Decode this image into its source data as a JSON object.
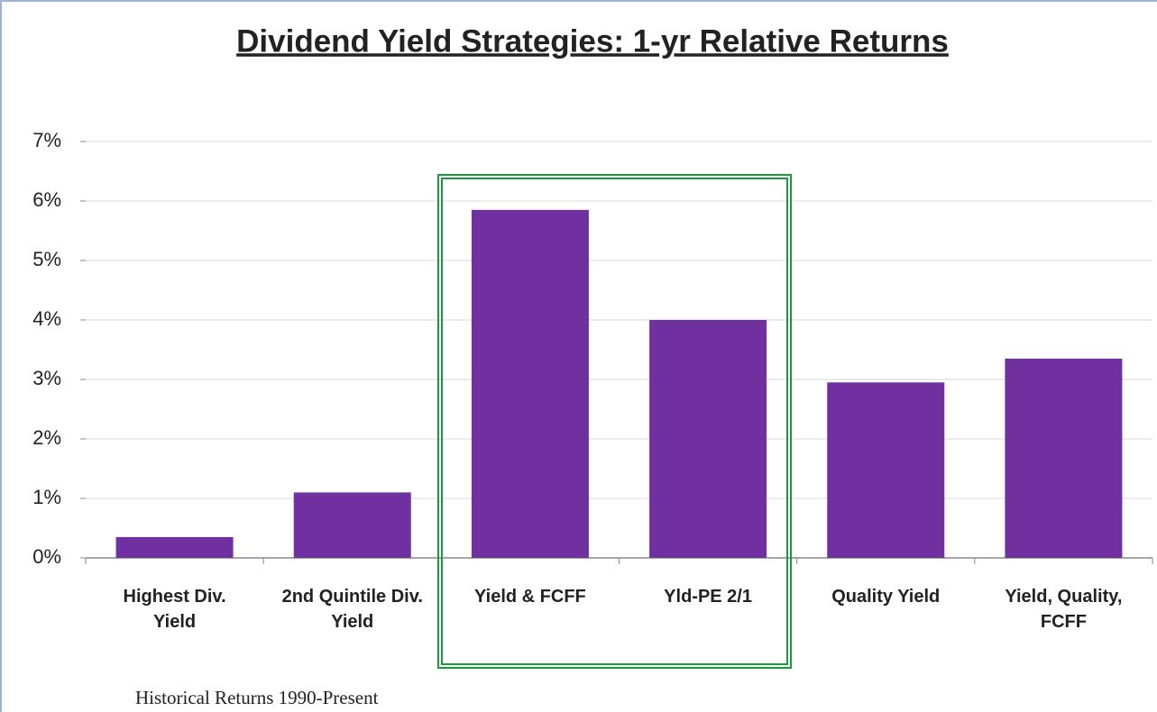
{
  "chart_data": {
    "type": "bar",
    "title": "Dividend Yield Strategies: 1-yr Relative Returns",
    "categories": [
      "Highest Div. Yield",
      "2nd Quintile Div. Yield",
      "Yield & FCFF",
      "Yld-PE 2/1",
      "Quality Yield",
      "Yield, Quality, FCFF"
    ],
    "values": [
      0.35,
      1.1,
      5.85,
      4.0,
      2.95,
      3.35
    ],
    "color": "#7030a0",
    "ylim": [
      0,
      7
    ],
    "yticks": [
      {
        "value": 0,
        "label": "0%"
      },
      {
        "value": 1,
        "label": "1%"
      },
      {
        "value": 2,
        "label": "2%"
      },
      {
        "value": 3,
        "label": "3%"
      },
      {
        "value": 4,
        "label": "4%"
      },
      {
        "value": 5,
        "label": "5%"
      },
      {
        "value": 6,
        "label": "6%"
      },
      {
        "value": 7,
        "label": "7%"
      }
    ],
    "grid": true,
    "note": "Historical Returns 1990-Present"
  }
}
